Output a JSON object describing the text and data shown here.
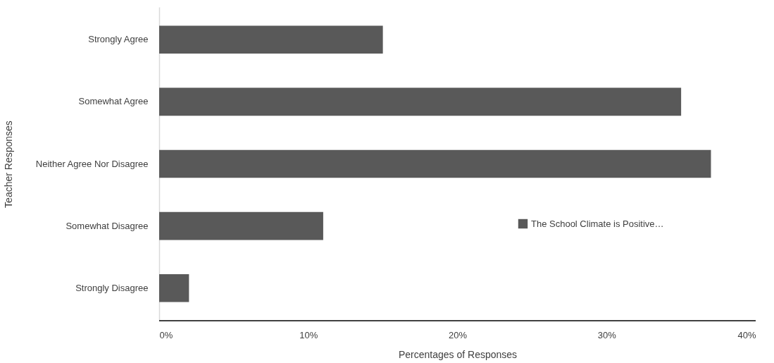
{
  "chart_data": {
    "type": "bar",
    "orientation": "horizontal",
    "xlabel": "Percentages of Responses",
    "ylabel": "Teacher Responses",
    "categories": [
      "Strongly Agree",
      "Somewhat Agree",
      "Neither Agree Nor Disagree",
      "Somewhat Disagree",
      "Strongly Disagree"
    ],
    "series": [
      {
        "name": "The School Climate is Positive…",
        "color": "#595959",
        "values": [
          15,
          35,
          37,
          11,
          2
        ]
      }
    ],
    "xlim": [
      0,
      40
    ],
    "xticks": [
      {
        "value": 0,
        "label": "0%"
      },
      {
        "value": 10,
        "label": "10%"
      },
      {
        "value": 20,
        "label": "20%"
      },
      {
        "value": 30,
        "label": "30%"
      },
      {
        "value": 40,
        "label": "40%"
      }
    ],
    "grid": false,
    "legend": "right"
  }
}
